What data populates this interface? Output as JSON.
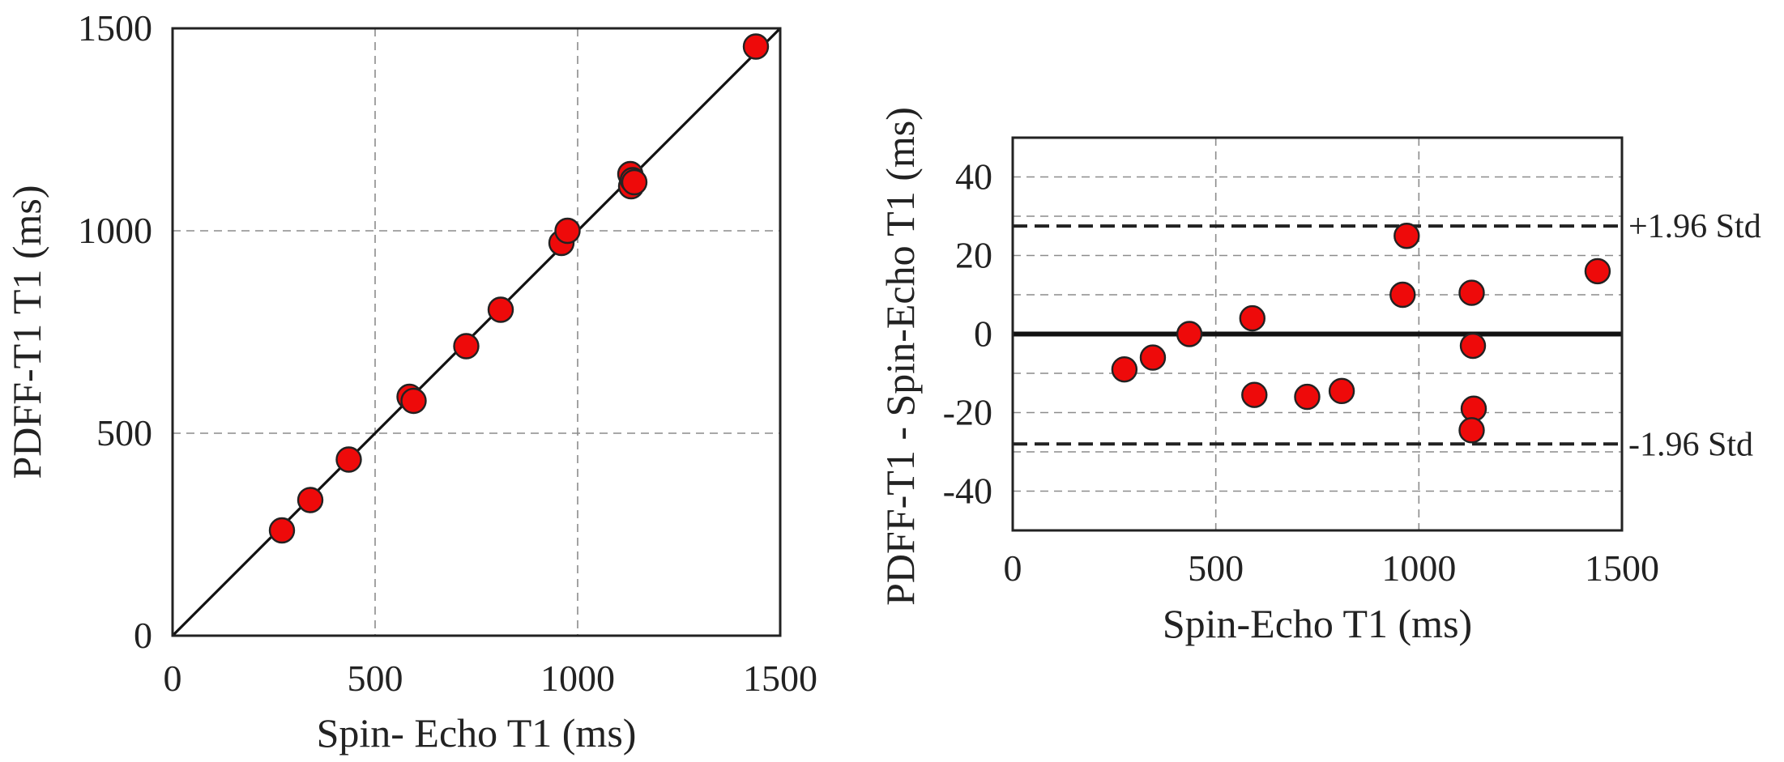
{
  "chart_data": [
    {
      "type": "scatter",
      "xlabel": "Spin- Echo T1 (ms)",
      "ylabel": "PDFF-T1 T1 (ms)",
      "xlim": [
        0,
        1500
      ],
      "ylim": [
        0,
        1500
      ],
      "xticks": [
        "0",
        "500",
        "1000",
        "1500"
      ],
      "yticks": [
        "0",
        "500",
        "1000",
        "1500"
      ],
      "grid": true,
      "identity_line": true,
      "points": [
        {
          "x": 270,
          "y": 260
        },
        {
          "x": 340,
          "y": 335
        },
        {
          "x": 435,
          "y": 435
        },
        {
          "x": 585,
          "y": 590
        },
        {
          "x": 595,
          "y": 580
        },
        {
          "x": 725,
          "y": 715
        },
        {
          "x": 810,
          "y": 805
        },
        {
          "x": 960,
          "y": 970
        },
        {
          "x": 975,
          "y": 1000
        },
        {
          "x": 1130,
          "y": 1140
        },
        {
          "x": 1132,
          "y": 1110
        },
        {
          "x": 1136,
          "y": 1125
        },
        {
          "x": 1140,
          "y": 1120
        },
        {
          "x": 1440,
          "y": 1455
        }
      ]
    },
    {
      "type": "scatter",
      "xlabel": "Spin-Echo T1 (ms)",
      "ylabel": "PDFF-T1 - Spin-Echo T1 (ms)",
      "xlim": [
        0,
        1500
      ],
      "ylim": [
        -50,
        50
      ],
      "xticks": [
        "0",
        "500",
        "1000",
        "1500"
      ],
      "yticks": [
        "-40",
        "-20",
        "0",
        "20",
        "40"
      ],
      "grid": true,
      "mean_line": 0,
      "limits": [
        {
          "label": "+1.96 Std",
          "value": 27.5
        },
        {
          "label": "-1.96 Std",
          "value": -28
        }
      ],
      "points": [
        {
          "x": 275,
          "y": -9
        },
        {
          "x": 345,
          "y": -6
        },
        {
          "x": 435,
          "y": 0
        },
        {
          "x": 590,
          "y": 4
        },
        {
          "x": 595,
          "y": -15.5
        },
        {
          "x": 725,
          "y": -16
        },
        {
          "x": 810,
          "y": -14.5
        },
        {
          "x": 960,
          "y": 10
        },
        {
          "x": 970,
          "y": 25
        },
        {
          "x": 1130,
          "y": 10.5
        },
        {
          "x": 1133,
          "y": -3
        },
        {
          "x": 1135,
          "y": -19
        },
        {
          "x": 1130,
          "y": -24.5
        },
        {
          "x": 1440,
          "y": 16
        }
      ]
    }
  ]
}
